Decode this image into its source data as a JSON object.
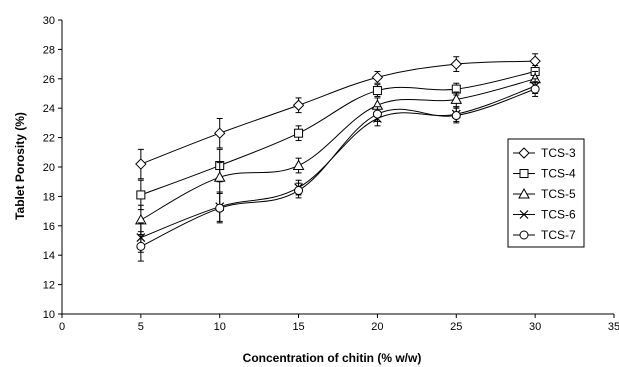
{
  "chart_data": {
    "type": "line",
    "title": "",
    "xlabel": "Concentration of chitin (% w/w)",
    "ylabel": "Tablet Porosity (%)",
    "xlim": [
      0,
      35
    ],
    "ylim": [
      10,
      30
    ],
    "xticks": [
      "0",
      "5",
      "10",
      "15",
      "20",
      "25",
      "30",
      "35"
    ],
    "yticks": [
      "10",
      "12",
      "14",
      "16",
      "18",
      "20",
      "22",
      "24",
      "26",
      "28",
      "30"
    ],
    "grid": false,
    "legend_position": "right",
    "x": [
      5,
      10,
      15,
      20,
      25,
      30
    ],
    "series": [
      {
        "name": "TCS-3",
        "marker": "diamond",
        "values": [
          20.2,
          22.3,
          24.2,
          26.1,
          27.0,
          27.2
        ],
        "errors": [
          1.0,
          1.0,
          0.5,
          0.4,
          0.5,
          0.5
        ]
      },
      {
        "name": "TCS-4",
        "marker": "square",
        "values": [
          18.1,
          20.1,
          22.3,
          25.2,
          25.3,
          26.5
        ],
        "errors": [
          1.0,
          1.1,
          0.5,
          0.4,
          0.4,
          0.4
        ]
      },
      {
        "name": "TCS-5",
        "marker": "triangle",
        "values": [
          16.4,
          19.3,
          20.1,
          24.2,
          24.6,
          26.0
        ],
        "errors": [
          1.0,
          1.0,
          0.5,
          0.5,
          0.5,
          0.5
        ]
      },
      {
        "name": "TCS-6",
        "marker": "x",
        "values": [
          15.2,
          17.3,
          18.6,
          23.3,
          23.6,
          25.5
        ],
        "errors": [
          1.0,
          1.0,
          0.5,
          0.5,
          0.5,
          0.5
        ]
      },
      {
        "name": "TCS-7",
        "marker": "circle",
        "values": [
          14.6,
          17.2,
          18.4,
          23.6,
          23.5,
          25.3
        ],
        "errors": [
          1.0,
          1.0,
          0.5,
          0.5,
          0.5,
          0.5
        ]
      }
    ]
  }
}
